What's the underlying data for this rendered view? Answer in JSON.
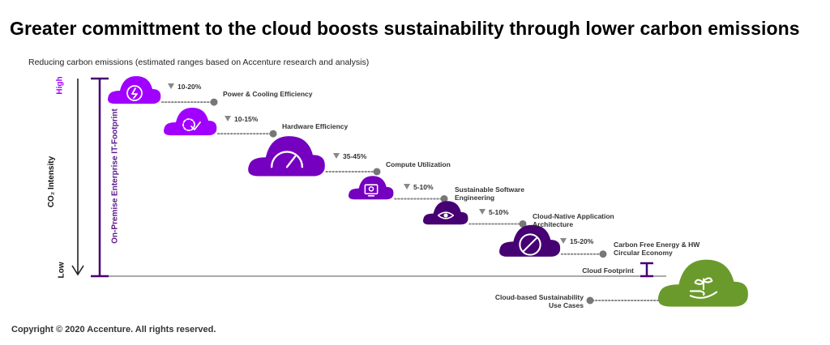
{
  "title": "Greater committment to the cloud boosts sustainability through lower carbon emissions",
  "subtitle": "Reducing carbon emissions (estimated ranges based on Accenture research and analysis)",
  "axis": {
    "high": "High",
    "low": "Low",
    "co2": "CO₂ Intensity",
    "on_premise": "On-Premise Enterprise IT-Footprint"
  },
  "steps": [
    {
      "pct": "10-20%",
      "name": "Power & Cooling Efficiency",
      "color": "#a100ff",
      "icon": "power-icon"
    },
    {
      "pct": "10-15%",
      "name": "Hardware Efficiency",
      "color": "#a100ff",
      "icon": "gear-check-icon"
    },
    {
      "pct": "35-45%",
      "name": "Compute Utilization",
      "color": "#7500c0",
      "icon": "gauge-icon"
    },
    {
      "pct": "5-10%",
      "name": "Sustainable Software Engineering",
      "color": "#7500c0",
      "icon": "code-monitor-icon"
    },
    {
      "pct": "5-10%",
      "name": "Cloud-Native Application Architecture",
      "color": "#460073",
      "icon": "cloud-eye-icon"
    },
    {
      "pct": "15-20%",
      "name": "Carbon Free Energy & HW Circular Economy",
      "color": "#460073",
      "icon": "no-sign-icon"
    }
  ],
  "cloud_footprint": "Cloud Footprint",
  "use_cases": {
    "name": "Cloud-based Sustainability Use Cases",
    "color": "#6a9a2c",
    "icon": "hand-plant-icon"
  },
  "copyright": "Copyright © 2020 Accenture. All rights reserved."
}
